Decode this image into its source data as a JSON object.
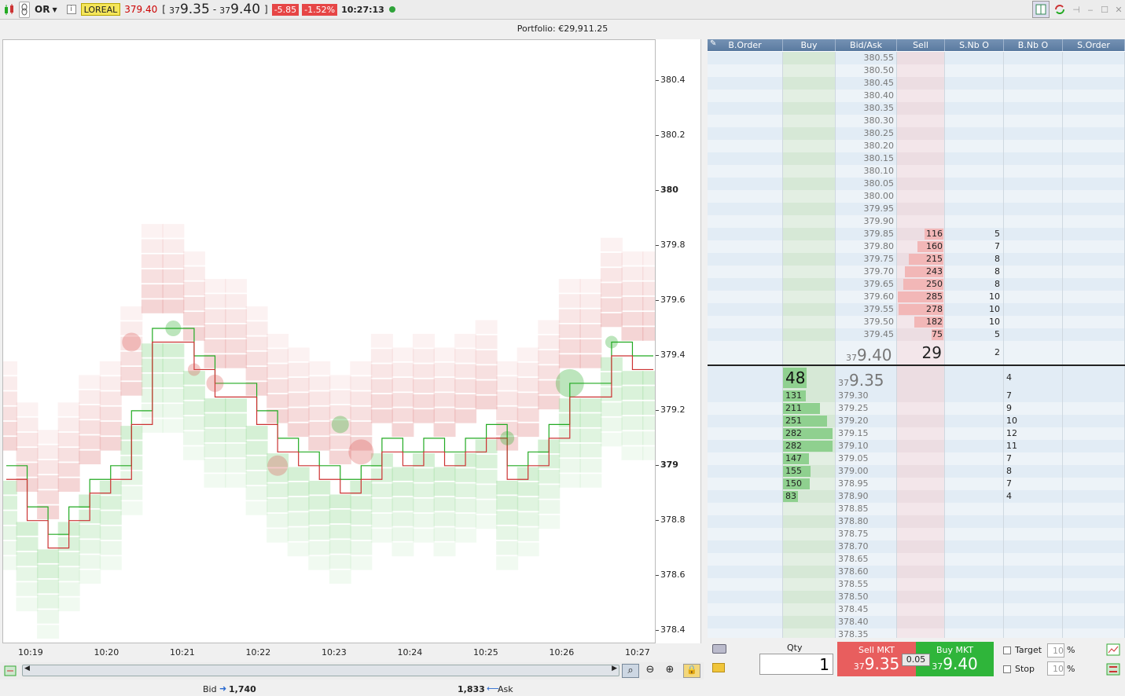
{
  "toolbar": {
    "symbol": "OR",
    "instrument": "LOREAL",
    "last": "379.40",
    "bid_prefix": "37",
    "bid_main": "9.35",
    "ask_prefix": "37",
    "ask_main": "9.40",
    "change": "-5.85",
    "change_pct": "-1.52%",
    "time": "10:27:13",
    "bracket_open": "[",
    "bracket_close": "]",
    "dash": "-"
  },
  "portfolio": "Portfolio: €29,911.25",
  "chart": {
    "y_ticks": [
      "380.4",
      "380.2",
      "380",
      "379.8",
      "379.6",
      "379.4",
      "379.2",
      "379",
      "378.8",
      "378.6",
      "378.4"
    ],
    "x_ticks": [
      "10:19",
      "10:20",
      "10:21",
      "10:22",
      "10:23",
      "10:24",
      "10:25",
      "10:26",
      "10:27"
    ]
  },
  "chart_data": {
    "type": "line",
    "title": "",
    "ylim": [
      378.35,
      380.55
    ],
    "y_bold": [
      "380",
      "379"
    ],
    "series": [
      {
        "name": "",
        "color": "#22aa22",
        "values": [
          379.0,
          378.85,
          378.75,
          378.85,
          378.95,
          379.0,
          379.2,
          379.5,
          379.5,
          379.4,
          379.3,
          379.3,
          379.2,
          379.1,
          379.05,
          379.0,
          378.95,
          379.0,
          379.1,
          379.05,
          379.1,
          379.05,
          379.1,
          379.15,
          379.0,
          379.05,
          379.15,
          379.3,
          379.3,
          379.45,
          379.4,
          379.4
        ]
      },
      {
        "name": "",
        "color": "#cc3333",
        "values": [
          378.95,
          378.8,
          378.7,
          378.8,
          378.9,
          378.95,
          379.15,
          379.45,
          379.45,
          379.35,
          379.25,
          379.25,
          379.15,
          379.05,
          379.0,
          378.95,
          378.9,
          378.95,
          379.05,
          379.0,
          379.05,
          379.0,
          379.05,
          379.1,
          378.95,
          379.0,
          379.1,
          379.25,
          379.25,
          379.4,
          379.35,
          379.35
        ]
      }
    ]
  },
  "orderbook": {
    "headers": [
      "B.Order",
      "Buy",
      "Bid/Ask",
      "Sell",
      "S.Nb O",
      "B.Nb O",
      "S.Order"
    ],
    "asks": [
      {
        "p": "380.55",
        "q": "",
        "n": ""
      },
      {
        "p": "380.50",
        "q": "",
        "n": ""
      },
      {
        "p": "380.45",
        "q": "",
        "n": ""
      },
      {
        "p": "380.40",
        "q": "",
        "n": ""
      },
      {
        "p": "380.35",
        "q": "",
        "n": ""
      },
      {
        "p": "380.30",
        "q": "",
        "n": ""
      },
      {
        "p": "380.25",
        "q": "",
        "n": ""
      },
      {
        "p": "380.20",
        "q": "",
        "n": ""
      },
      {
        "p": "380.15",
        "q": "",
        "n": ""
      },
      {
        "p": "380.10",
        "q": "",
        "n": ""
      },
      {
        "p": "380.05",
        "q": "",
        "n": ""
      },
      {
        "p": "380.00",
        "q": "",
        "n": ""
      },
      {
        "p": "379.95",
        "q": "",
        "n": ""
      },
      {
        "p": "379.90",
        "q": "",
        "n": ""
      },
      {
        "p": "379.85",
        "q": "116",
        "n": "5"
      },
      {
        "p": "379.80",
        "q": "160",
        "n": "7"
      },
      {
        "p": "379.75",
        "q": "215",
        "n": "8"
      },
      {
        "p": "379.70",
        "q": "243",
        "n": "8"
      },
      {
        "p": "379.65",
        "q": "250",
        "n": "8"
      },
      {
        "p": "379.60",
        "q": "285",
        "n": "10"
      },
      {
        "p": "379.55",
        "q": "278",
        "n": "10"
      },
      {
        "p": "379.50",
        "q": "182",
        "n": "10"
      },
      {
        "p": "379.45",
        "q": "75",
        "n": "5"
      }
    ],
    "best_ask": {
      "prefix": "37",
      "main": "9.40",
      "q": "29",
      "n": "2"
    },
    "best_bid": {
      "prefix": "37",
      "main": "9.35",
      "q": "48",
      "n": "4"
    },
    "bids": [
      {
        "p": "379.30",
        "q": "131",
        "n": "7"
      },
      {
        "p": "379.25",
        "q": "211",
        "n": "9"
      },
      {
        "p": "379.20",
        "q": "251",
        "n": "10"
      },
      {
        "p": "379.15",
        "q": "282",
        "n": "12"
      },
      {
        "p": "379.10",
        "q": "282",
        "n": "11"
      },
      {
        "p": "379.05",
        "q": "147",
        "n": "7"
      },
      {
        "p": "379.00",
        "q": "155",
        "n": "8"
      },
      {
        "p": "378.95",
        "q": "150",
        "n": "7"
      },
      {
        "p": "378.90",
        "q": "83",
        "n": "4"
      },
      {
        "p": "378.85",
        "q": "",
        "n": ""
      },
      {
        "p": "378.80",
        "q": "",
        "n": ""
      },
      {
        "p": "378.75",
        "q": "",
        "n": ""
      },
      {
        "p": "378.70",
        "q": "",
        "n": ""
      },
      {
        "p": "378.65",
        "q": "",
        "n": ""
      },
      {
        "p": "378.60",
        "q": "",
        "n": ""
      },
      {
        "p": "378.55",
        "q": "",
        "n": ""
      },
      {
        "p": "378.50",
        "q": "",
        "n": ""
      },
      {
        "p": "378.45",
        "q": "",
        "n": ""
      },
      {
        "p": "378.40",
        "q": "",
        "n": ""
      },
      {
        "p": "378.35",
        "q": "",
        "n": ""
      }
    ],
    "max_qty": 285
  },
  "trade": {
    "qty_label": "Qty",
    "qty": "1",
    "sell_label": "Sell MKT",
    "sell_prefix": "37",
    "sell_main": "9.35",
    "spread": "0.05",
    "buy_label": "Buy MKT",
    "buy_prefix": "37",
    "buy_main": "9.40",
    "target_label": "Target",
    "stop_label": "Stop",
    "target_val": "10",
    "stop_val": "10",
    "pct": "%"
  },
  "bottom": {
    "bid_label": "Bid",
    "bid_val": "1,740",
    "ask_val": "1,833",
    "ask_label": "Ask"
  },
  "colors": {
    "header": "#6a87ab",
    "sell_bar": "#f2b7b7",
    "buy_bar": "#8fd08f",
    "sell_btn": "#e85e5e",
    "buy_btn": "#2fb53a"
  }
}
